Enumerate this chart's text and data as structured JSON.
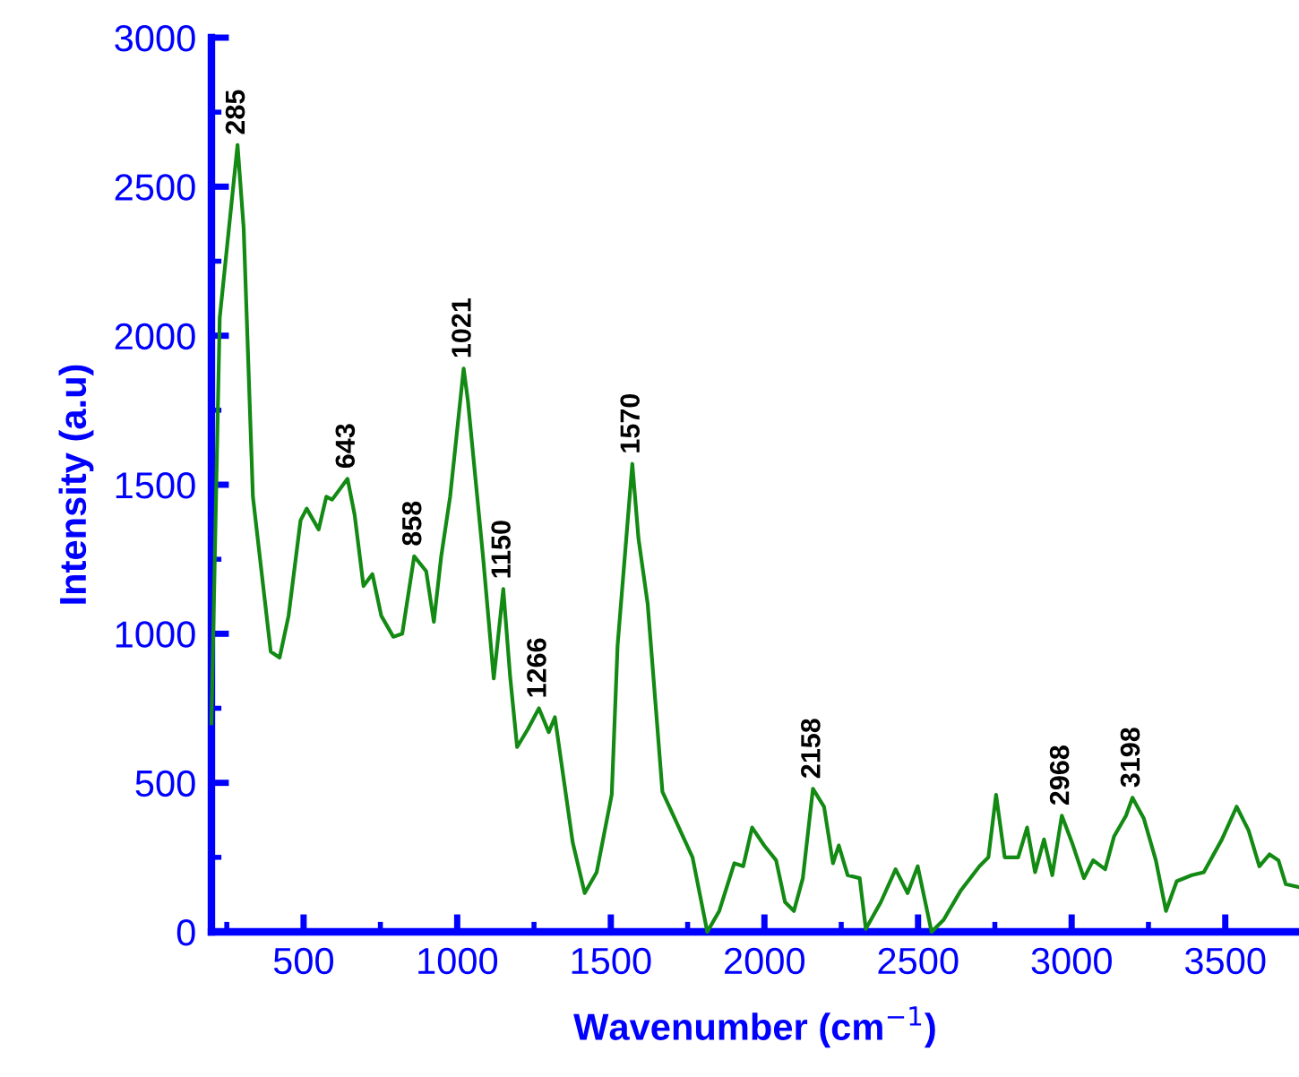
{
  "chart_data": {
    "type": "line",
    "xlabel": "Wavenumber (cm$^{−1}$)",
    "ylabel": "Intensity (a.u)",
    "xlim": [
      200,
      3740
    ],
    "ylim": [
      0,
      3000
    ],
    "xticks": [
      {
        "value": 250,
        "label": null
      },
      500,
      {
        "value": 750,
        "label": null
      },
      1000,
      {
        "value": 1250,
        "label": null
      },
      1500,
      {
        "value": 1750,
        "label": null
      },
      2000,
      {
        "value": 2250,
        "label": null
      },
      2500,
      {
        "value": 2750,
        "label": null
      },
      3000,
      {
        "value": 3250,
        "label": null
      },
      3500
    ],
    "yticks": [
      0,
      {
        "value": 250,
        "label": null
      },
      500,
      {
        "value": 750,
        "label": null
      },
      1000,
      {
        "value": 1250,
        "label": null
      },
      1500,
      {
        "value": 1750,
        "label": null
      },
      2000,
      {
        "value": 2250,
        "label": null
      },
      2500,
      {
        "value": 2750,
        "label": null
      },
      3000
    ],
    "grid": false,
    "marker": "none",
    "line_style": "solid",
    "series": [
      {
        "color": "#138a13",
        "x": [
          200,
          227,
          285,
          305,
          335,
          364,
          393,
          422,
          451,
          490,
          510,
          549,
          574,
          593,
          643,
          666,
          695,
          724,
          753,
          792,
          821,
          860,
          899,
          924,
          948,
          977,
          1021,
          1035,
          1084,
          1119,
          1150,
          1172,
          1195,
          1230,
          1266,
          1298,
          1318,
          1376,
          1415,
          1454,
          1503,
          1522,
          1570,
          1590,
          1620,
          1668,
          1717,
          1766,
          1814,
          1853,
          1902,
          1931,
          1960,
          1999,
          2038,
          2067,
          2096,
          2125,
          2158,
          2194,
          2223,
          2242,
          2271,
          2310,
          2330,
          2379,
          2427,
          2466,
          2499,
          2544,
          2583,
          2640,
          2700,
          2729,
          2754,
          2782,
          2826,
          2855,
          2881,
          2910,
          2937,
          2968,
          3001,
          3040,
          3070,
          3109,
          3138,
          3177,
          3198,
          3235,
          3274,
          3307,
          3342,
          3391,
          3430,
          3489,
          3537,
          3576,
          3611,
          3644,
          3673,
          3697,
          3740
        ],
        "values": [
          700,
          2060,
          2640,
          2360,
          1460,
          1200,
          940,
          920,
          1060,
          1380,
          1420,
          1350,
          1460,
          1450,
          1520,
          1400,
          1160,
          1200,
          1060,
          990,
          1000,
          1260,
          1210,
          1040,
          1260,
          1460,
          1890,
          1780,
          1260,
          850,
          1150,
          860,
          620,
          680,
          750,
          670,
          720,
          300,
          130,
          200,
          460,
          960,
          1570,
          1320,
          1100,
          470,
          360,
          250,
          0,
          70,
          230,
          220,
          350,
          290,
          240,
          100,
          70,
          180,
          480,
          420,
          230,
          290,
          190,
          180,
          10,
          100,
          210,
          130,
          220,
          0,
          40,
          140,
          220,
          250,
          460,
          250,
          250,
          350,
          200,
          310,
          190,
          390,
          300,
          180,
          240,
          210,
          320,
          390,
          450,
          380,
          240,
          70,
          170,
          190,
          200,
          310,
          420,
          340,
          220,
          260,
          240,
          160,
          150
        ]
      }
    ],
    "annotations": [
      {
        "text": "285",
        "x": 285,
        "y": 2640
      },
      {
        "text": "643",
        "x": 643,
        "y": 1520
      },
      {
        "text": "858",
        "x": 860,
        "y": 1260
      },
      {
        "text": "1021",
        "x": 1021,
        "y": 1890
      },
      {
        "text": "1150",
        "x": 1150,
        "y": 1150
      },
      {
        "text": "1266",
        "x": 1266,
        "y": 750
      },
      {
        "text": "1570",
        "x": 1570,
        "y": 1570
      },
      {
        "text": "2158",
        "x": 2158,
        "y": 480
      },
      {
        "text": "2968",
        "x": 2968,
        "y": 390
      },
      {
        "text": "3198",
        "x": 3198,
        "y": 450
      }
    ]
  }
}
